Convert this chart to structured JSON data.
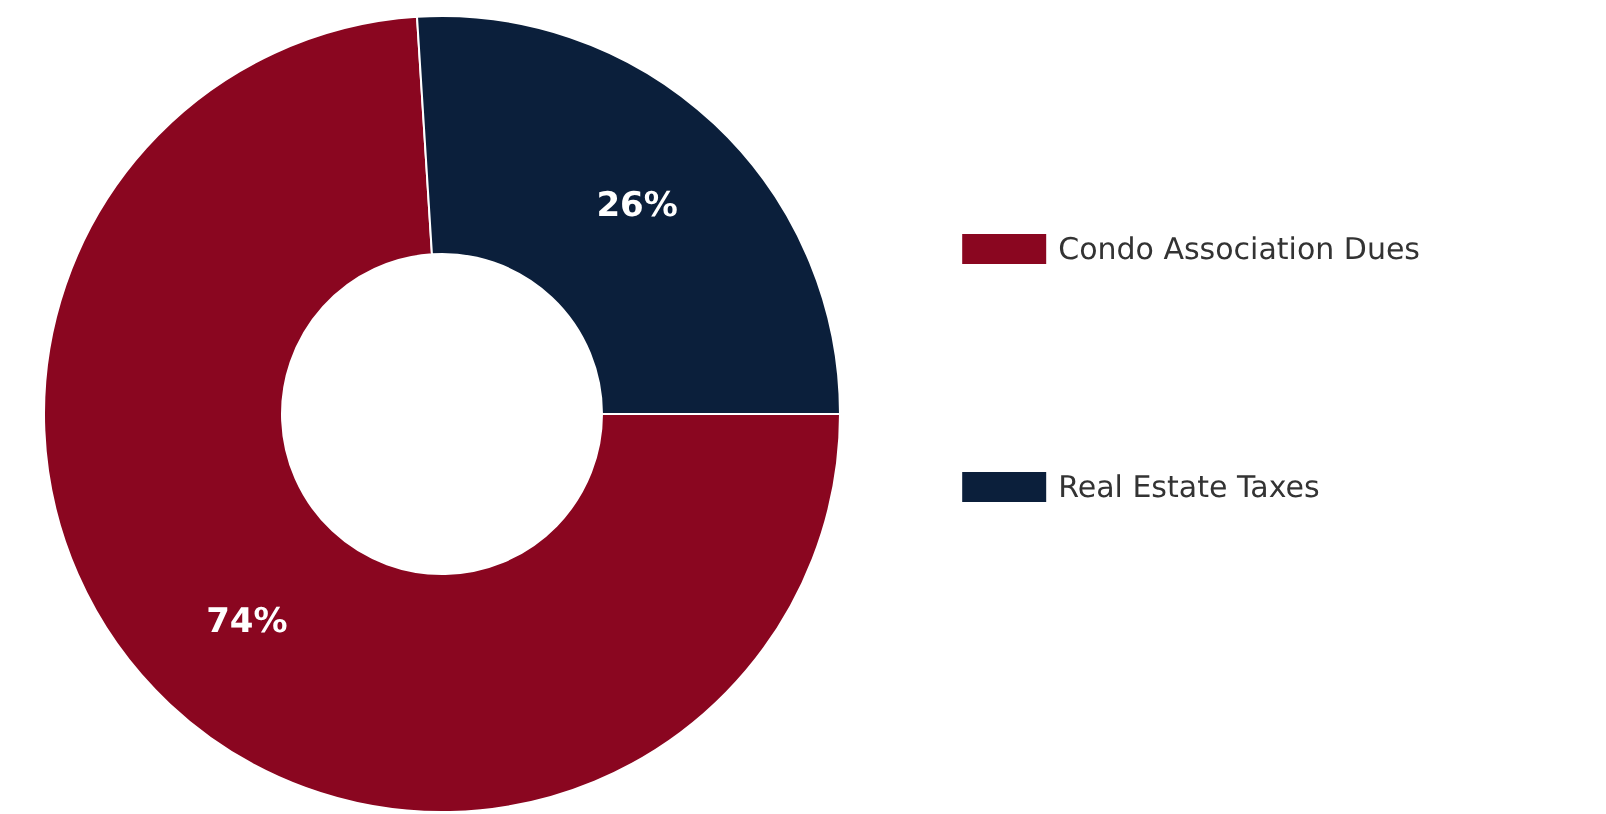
{
  "chart_data": {
    "type": "donut",
    "categories": [
      "Condo Association Dues",
      "Real Estate Taxes"
    ],
    "values": [
      74,
      26
    ],
    "colors": [
      "#8a0620",
      "#0b1f3b"
    ],
    "value_labels": [
      "74%",
      "26%"
    ],
    "legend": "right"
  }
}
